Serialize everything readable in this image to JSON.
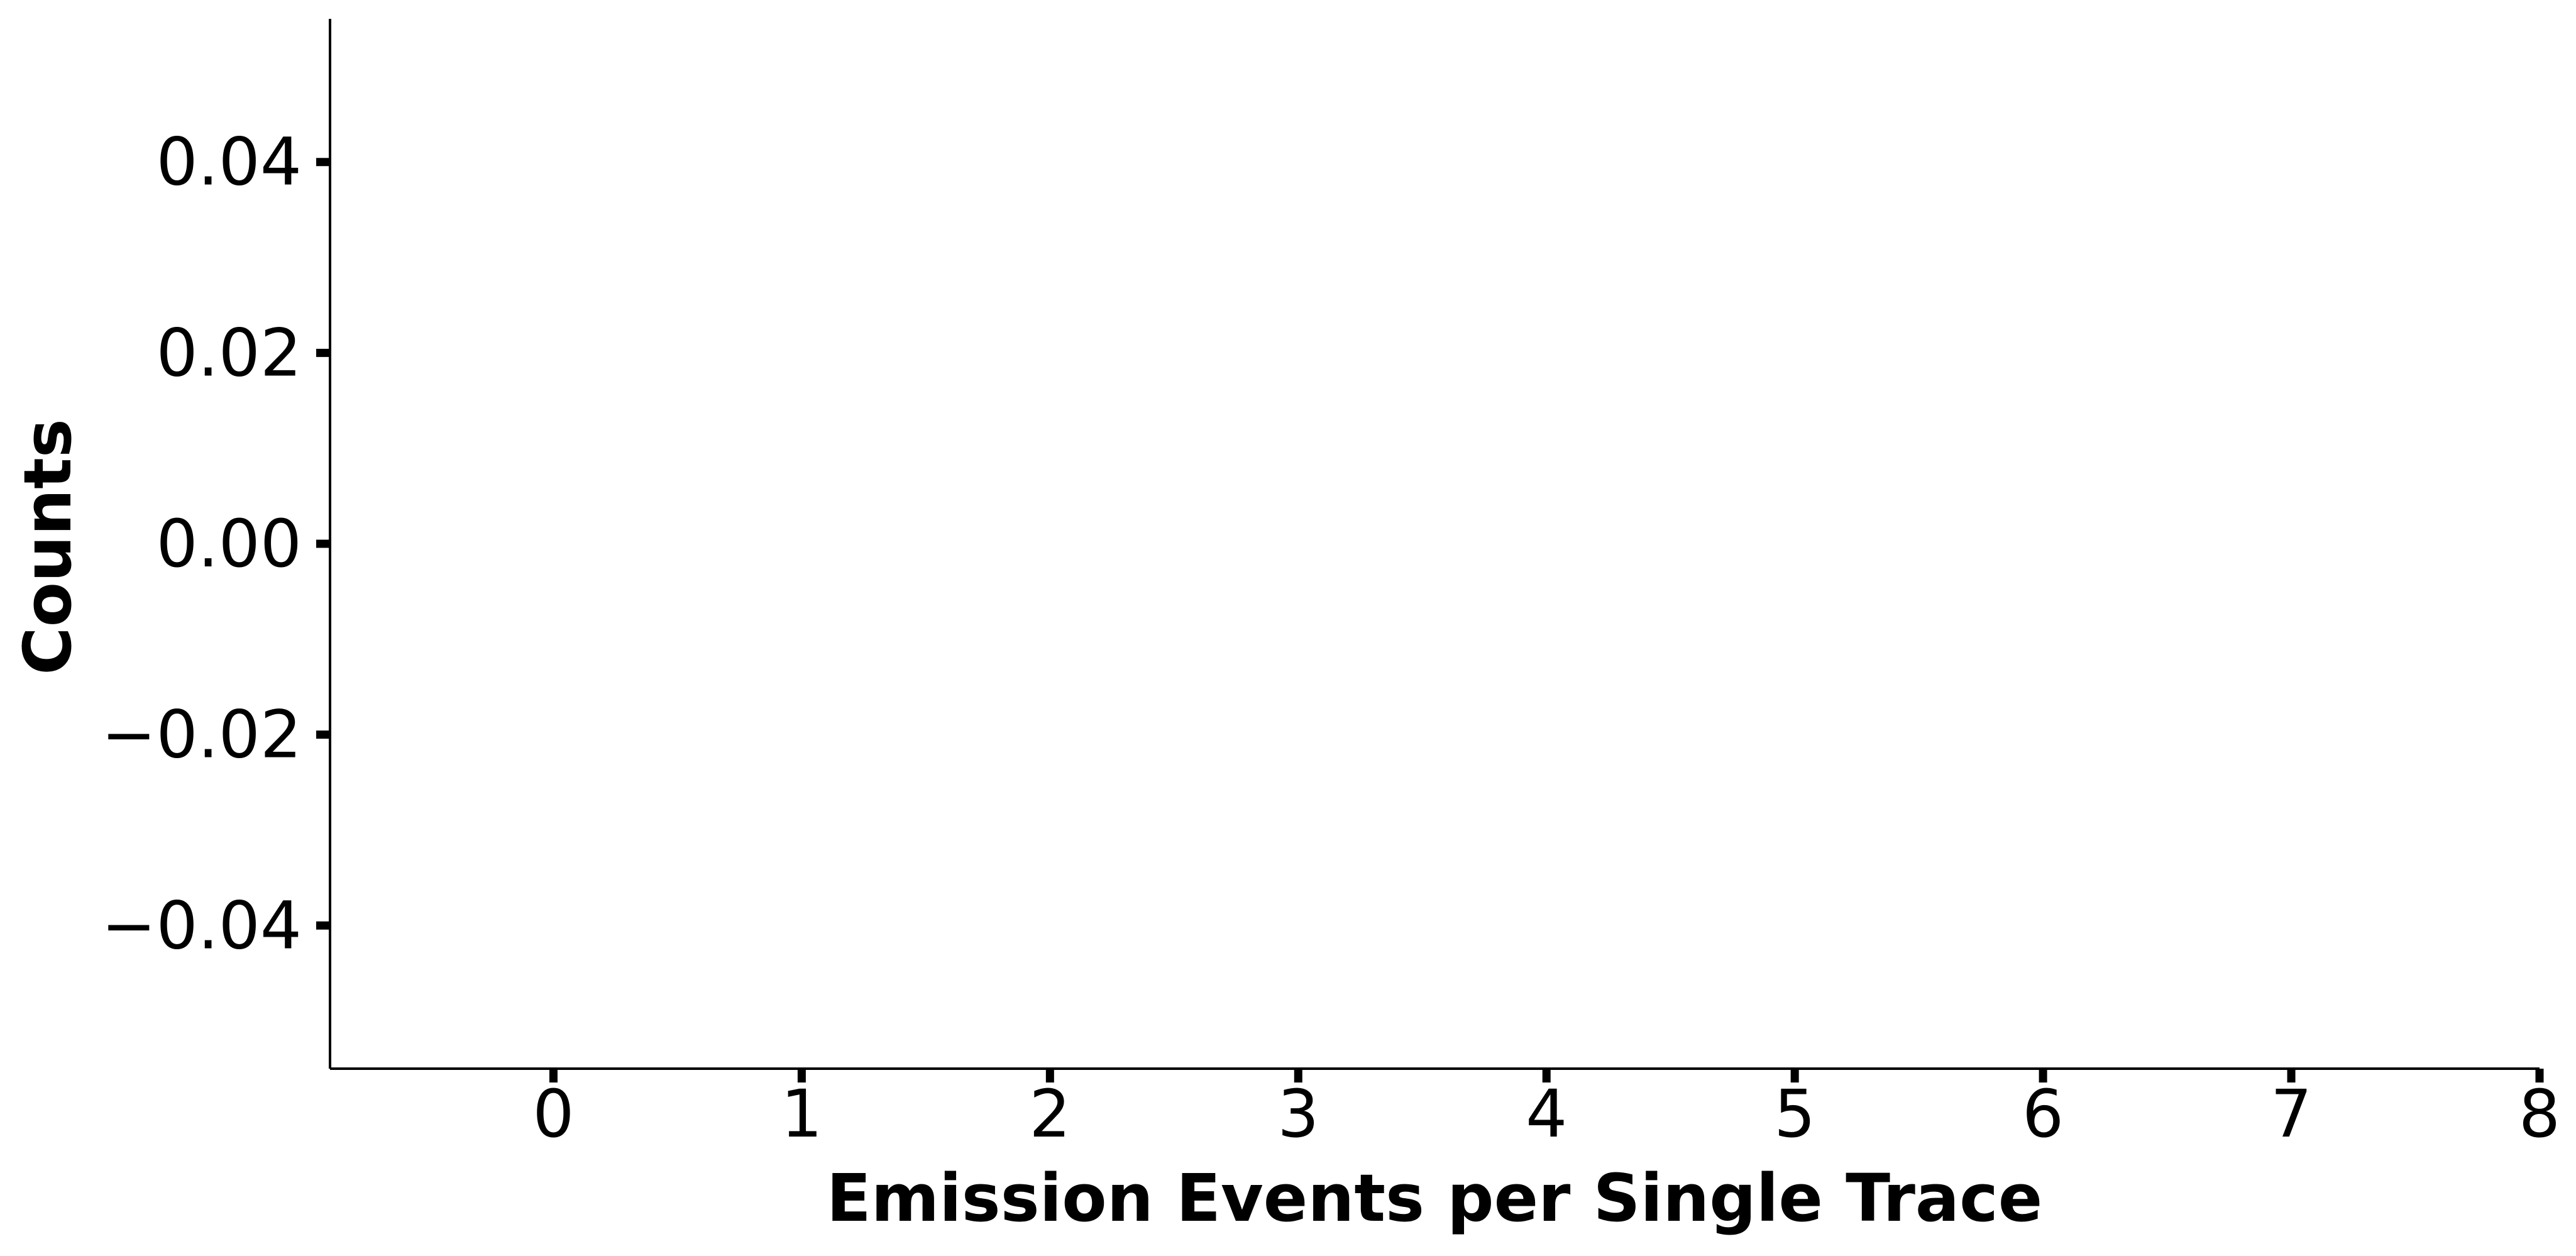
{
  "chart_data": {
    "type": "bar",
    "title": "",
    "xlabel": "Emission Events per Single Trace",
    "ylabel": "Counts",
    "xlim": [
      -0.9,
      8.0
    ],
    "ylim": [
      -0.055,
      0.055
    ],
    "x_ticks": [
      0,
      1,
      2,
      3,
      4,
      5,
      6,
      7,
      8
    ],
    "x_tick_labels": [
      "0",
      "1",
      "2",
      "3",
      "4",
      "5",
      "6",
      "7",
      "8"
    ],
    "y_ticks": [
      -0.04,
      -0.02,
      0.0,
      0.02,
      0.04
    ],
    "y_tick_labels": [
      "−0.04",
      "−0.02",
      "0.00",
      "0.02",
      "0.04"
    ],
    "categories": [],
    "values": [],
    "grid": false,
    "spines": [
      "left",
      "bottom"
    ],
    "colors": {
      "axis": "#000000",
      "background": "#ffffff"
    }
  }
}
